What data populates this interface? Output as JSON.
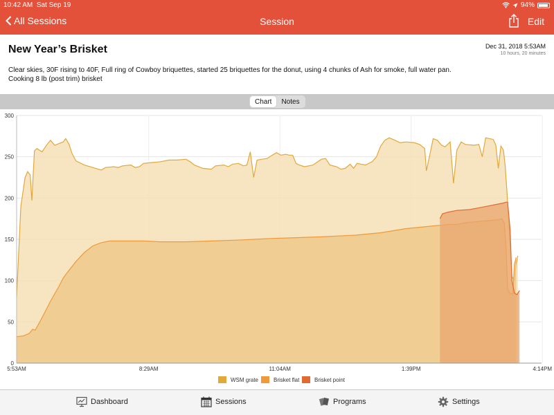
{
  "status": {
    "time": "10:42 AM",
    "date": "Sat Sep 19",
    "battery": "94%"
  },
  "nav": {
    "back_label": "All Sessions",
    "title": "Session",
    "edit_label": "Edit"
  },
  "session": {
    "title": "New Year’s Brisket",
    "date": "Dec 31, 2018 5:53AM",
    "duration": "10 hours, 20 minutes",
    "description_line1": "Clear skies, 30F rising to 40F, Full ring of Cowboy briquettes, started 25 briquettes for the donut, using 4 chunks of Ash for smoke, full water pan.",
    "description_line2": "Cooking 8 lb (post trim) brisket"
  },
  "segments": {
    "chart": "Chart",
    "notes": "Notes"
  },
  "tabs": {
    "dashboard": "Dashboard",
    "sessions": "Sessions",
    "programs": "Programs",
    "settings": "Settings"
  },
  "colors": {
    "accent": "#e3513a",
    "wsm": "#e1a83a",
    "flat": "#f0993a",
    "point": "#df6b33"
  },
  "chart_data": {
    "type": "area",
    "ylim": [
      0,
      300
    ],
    "yticks": [
      "0",
      "50",
      "100",
      "150",
      "200",
      "250",
      "300"
    ],
    "xlim": [
      0,
      620
    ],
    "xticks": [
      {
        "value": 0,
        "label": "5:53AM"
      },
      {
        "value": 156,
        "label": "8:29AM"
      },
      {
        "value": 311,
        "label": "11:04AM"
      },
      {
        "value": 466,
        "label": "1:39PM"
      },
      {
        "value": 621,
        "label": "4:14PM"
      }
    ],
    "legend": [
      "WSM grate",
      "Brisket flat",
      "Brisket point"
    ],
    "legend_position": "bottom",
    "series": [
      {
        "name": "WSM grate",
        "color": "#e1a83a",
        "fill": "#f6dfb5",
        "points": [
          [
            0,
            80
          ],
          [
            5,
            190
          ],
          [
            10,
            225
          ],
          [
            13,
            232
          ],
          [
            16,
            228
          ],
          [
            18,
            197
          ],
          [
            21,
            257
          ],
          [
            24,
            260
          ],
          [
            30,
            256
          ],
          [
            36,
            265
          ],
          [
            40,
            270
          ],
          [
            45,
            264
          ],
          [
            50,
            266
          ],
          [
            55,
            268
          ],
          [
            58,
            272
          ],
          [
            62,
            265
          ],
          [
            65,
            255
          ],
          [
            70,
            245
          ],
          [
            80,
            240
          ],
          [
            90,
            237
          ],
          [
            100,
            234
          ],
          [
            105,
            237
          ],
          [
            115,
            238
          ],
          [
            120,
            237
          ],
          [
            125,
            239
          ],
          [
            135,
            240
          ],
          [
            140,
            237
          ],
          [
            145,
            238
          ],
          [
            150,
            242
          ],
          [
            160,
            243
          ],
          [
            170,
            244
          ],
          [
            180,
            246
          ],
          [
            190,
            246
          ],
          [
            200,
            247
          ],
          [
            205,
            244
          ],
          [
            210,
            240
          ],
          [
            220,
            236
          ],
          [
            230,
            235
          ],
          [
            235,
            239
          ],
          [
            245,
            240
          ],
          [
            250,
            238
          ],
          [
            255,
            241
          ],
          [
            262,
            242
          ],
          [
            268,
            239
          ],
          [
            272,
            240
          ],
          [
            276,
            256
          ],
          [
            280,
            225
          ],
          [
            284,
            246
          ],
          [
            290,
            247
          ],
          [
            296,
            248
          ],
          [
            302,
            252
          ],
          [
            307,
            255
          ],
          [
            312,
            252
          ],
          [
            318,
            253
          ],
          [
            322,
            252
          ],
          [
            326,
            252
          ],
          [
            330,
            242
          ],
          [
            334,
            240
          ],
          [
            340,
            238
          ],
          [
            350,
            240
          ],
          [
            360,
            247
          ],
          [
            365,
            248
          ],
          [
            370,
            240
          ],
          [
            378,
            238
          ],
          [
            383,
            235
          ],
          [
            388,
            236
          ],
          [
            394,
            241
          ],
          [
            398,
            236
          ],
          [
            402,
            242
          ],
          [
            412,
            240
          ],
          [
            420,
            244
          ],
          [
            425,
            250
          ],
          [
            430,
            263
          ],
          [
            435,
            270
          ],
          [
            440,
            273
          ],
          [
            447,
            270
          ],
          [
            453,
            267
          ],
          [
            460,
            268
          ],
          [
            470,
            267
          ],
          [
            476,
            265
          ],
          [
            482,
            260
          ],
          [
            484,
            233
          ],
          [
            488,
            252
          ],
          [
            492,
            272
          ],
          [
            497,
            270
          ],
          [
            502,
            264
          ],
          [
            506,
            262
          ],
          [
            512,
            268
          ],
          [
            516,
            218
          ],
          [
            520,
            258
          ],
          [
            525,
            268
          ],
          [
            530,
            265
          ],
          [
            540,
            264
          ],
          [
            546,
            265
          ],
          [
            550,
            250
          ],
          [
            554,
            273
          ],
          [
            563,
            271
          ],
          [
            566,
            264
          ],
          [
            569,
            236
          ],
          [
            572,
            263
          ],
          [
            575,
            258
          ],
          [
            577,
            240
          ],
          [
            579,
            210
          ],
          [
            582,
            160
          ],
          [
            585,
            105
          ],
          [
            588,
            100
          ],
          [
            590,
            120
          ],
          [
            592,
            130
          ]
        ]
      },
      {
        "name": "Brisket flat",
        "color": "#f0993a",
        "fill": "#efc98a",
        "points": [
          [
            0,
            32
          ],
          [
            8,
            33
          ],
          [
            15,
            36
          ],
          [
            19,
            41
          ],
          [
            22,
            40
          ],
          [
            30,
            55
          ],
          [
            40,
            75
          ],
          [
            50,
            93
          ],
          [
            55,
            103
          ],
          [
            60,
            110
          ],
          [
            70,
            123
          ],
          [
            80,
            134
          ],
          [
            90,
            142
          ],
          [
            100,
            146
          ],
          [
            110,
            148
          ],
          [
            130,
            148
          ],
          [
            150,
            148
          ],
          [
            170,
            147
          ],
          [
            200,
            147
          ],
          [
            230,
            148
          ],
          [
            260,
            149
          ],
          [
            280,
            150
          ],
          [
            300,
            151
          ],
          [
            330,
            152
          ],
          [
            360,
            153
          ],
          [
            400,
            155
          ],
          [
            430,
            158
          ],
          [
            460,
            163
          ],
          [
            480,
            165
          ],
          [
            490,
            166
          ],
          [
            500,
            167
          ],
          [
            510,
            168
          ],
          [
            520,
            168
          ],
          [
            530,
            170
          ],
          [
            540,
            171
          ],
          [
            550,
            172
          ],
          [
            560,
            173
          ],
          [
            570,
            174
          ],
          [
            573,
            175
          ],
          [
            576,
            170
          ],
          [
            578,
            140
          ],
          [
            580,
            90
          ],
          [
            583,
            84
          ],
          [
            586,
            84
          ],
          [
            588,
            120
          ],
          [
            590,
            128
          ]
        ]
      },
      {
        "name": "Brisket point",
        "color": "#df6b33",
        "fill": "#e8a66e",
        "points": [
          [
            500,
            175
          ],
          [
            503,
            181
          ],
          [
            510,
            183
          ],
          [
            520,
            185
          ],
          [
            535,
            186
          ],
          [
            545,
            188
          ],
          [
            555,
            190
          ],
          [
            565,
            192
          ],
          [
            575,
            194
          ],
          [
            578,
            195
          ],
          [
            580,
            195
          ],
          [
            583,
            160
          ],
          [
            585,
            100
          ],
          [
            588,
            85
          ],
          [
            591,
            83
          ],
          [
            594,
            88
          ]
        ]
      }
    ]
  }
}
